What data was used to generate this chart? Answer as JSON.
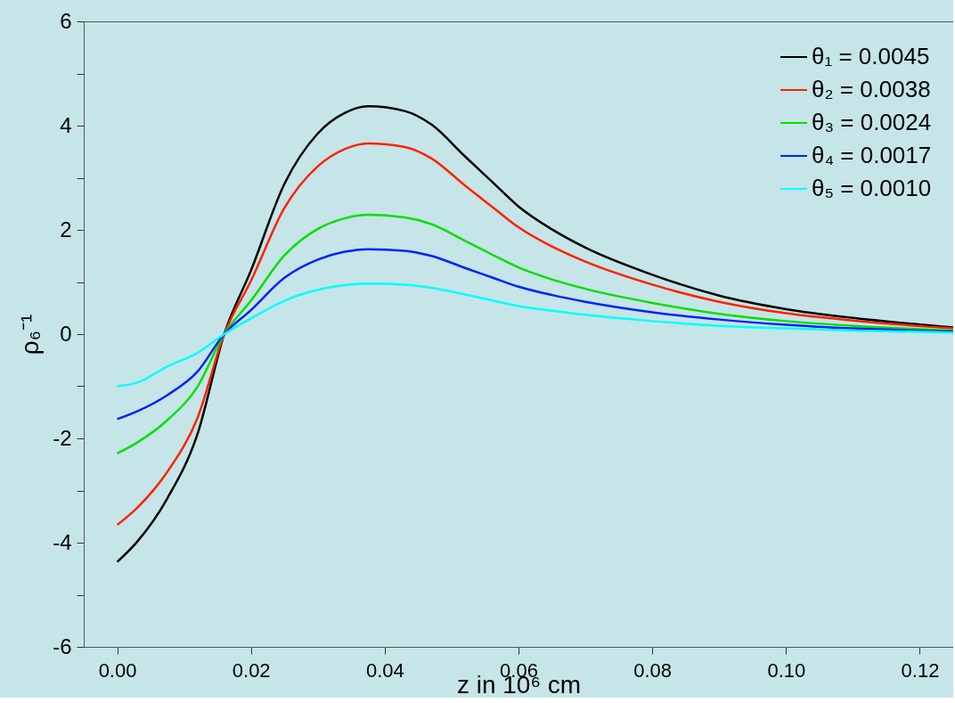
{
  "chart_data": {
    "type": "line",
    "xlabel": "z in 10⁶ cm",
    "ylabel": "ρ₆⁻¹",
    "x": [
      0,
      0.003,
      0.0075,
      0.012,
      0.016,
      0.02,
      0.025,
      0.03,
      0.034,
      0.0375,
      0.043,
      0.047,
      0.052,
      0.056,
      0.06,
      0.065,
      0.07,
      0.08,
      0.09,
      0.1,
      0.11,
      0.125
    ],
    "series": [
      {
        "name": "θ₁ = 0.0045",
        "color": "#000000",
        "values": [
          -4.37,
          -3.98,
          -3.15,
          -1.92,
          0,
          1.22,
          2.88,
          3.85,
          4.24,
          4.37,
          4.28,
          4.02,
          3.41,
          2.93,
          2.45,
          2.01,
          1.66,
          1.14,
          0.74,
          0.48,
          0.31,
          0.13
        ]
      },
      {
        "name": "θ₂ = 0.0038",
        "color": "#ff2200",
        "values": [
          -3.66,
          -3.33,
          -2.64,
          -1.61,
          0,
          1.02,
          2.42,
          3.22,
          3.55,
          3.66,
          3.59,
          3.37,
          2.85,
          2.45,
          2.05,
          1.68,
          1.39,
          0.95,
          0.62,
          0.4,
          0.26,
          0.11
        ]
      },
      {
        "name": "θ₃ = 0.0024",
        "color": "#00e000",
        "values": [
          -2.29,
          -2.08,
          -1.65,
          -1.01,
          0,
          0.64,
          1.51,
          2.02,
          2.22,
          2.29,
          2.24,
          2.11,
          1.79,
          1.53,
          1.28,
          1.05,
          0.87,
          0.6,
          0.39,
          0.25,
          0.16,
          0.07
        ]
      },
      {
        "name": "θ₄ = 0.0017",
        "color": "#0022ff",
        "values": [
          -1.63,
          -1.48,
          -1.17,
          -0.72,
          0,
          0.46,
          1.08,
          1.43,
          1.58,
          1.63,
          1.6,
          1.5,
          1.27,
          1.09,
          0.91,
          0.75,
          0.62,
          0.42,
          0.28,
          0.18,
          0.11,
          0.05
        ]
      },
      {
        "name": "θ₅ = 0.0010",
        "color": "#00ffff",
        "values": [
          -1.0,
          -0.93,
          -0.62,
          -0.36,
          0,
          0.3,
          0.64,
          0.85,
          0.94,
          0.97,
          0.95,
          0.89,
          0.76,
          0.65,
          0.54,
          0.45,
          0.37,
          0.25,
          0.16,
          0.11,
          0.07,
          0.03
        ]
      }
    ],
    "xlim": [
      -0.005,
      0.125
    ],
    "xticks": [
      {
        "value": 0,
        "label": "0.00"
      },
      0.02,
      0.04,
      0.06,
      0.08,
      {
        "value": 0.1,
        "label": "0.10"
      },
      0.12
    ],
    "ylim": [
      -6,
      6
    ],
    "yticks": [
      -6,
      {
        "value": -5,
        "label": null
      },
      -4,
      {
        "value": -3,
        "label": null
      },
      -2,
      {
        "value": -1,
        "label": null
      },
      0,
      {
        "value": 1,
        "label": null
      },
      2,
      {
        "value": 3,
        "label": null
      },
      4,
      {
        "value": 5,
        "label": null
      },
      6
    ],
    "grid": false,
    "legend": "top right",
    "line_style": "solid",
    "marker": "none"
  }
}
